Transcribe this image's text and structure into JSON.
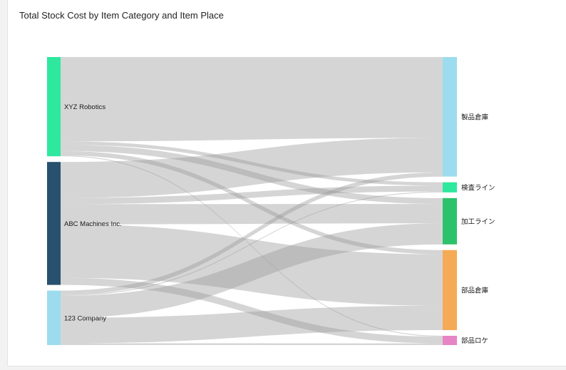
{
  "chart_data": {
    "type": "sankey",
    "title": "Total Stock Cost by Item Category and Item Place",
    "sources": [
      {
        "id": "xyz",
        "name": "XYZ Robotics",
        "color": "#2de89e"
      },
      {
        "id": "abc",
        "name": "ABC Machines Inc.",
        "color": "#27516e"
      },
      {
        "id": "c123",
        "name": "123 Company",
        "color": "#9ddcee"
      }
    ],
    "targets": [
      {
        "id": "seihin",
        "name": "製品倉庫",
        "color": "#9ddcee"
      },
      {
        "id": "kensa",
        "name": "検査ライン",
        "color": "#2de89e"
      },
      {
        "id": "kako",
        "name": "加工ライン",
        "color": "#2cc26b"
      },
      {
        "id": "buhin",
        "name": "部品倉庫",
        "color": "#f5aa55"
      },
      {
        "id": "buhinroke",
        "name": "部品ロケ",
        "color": "#e784c5"
      }
    ],
    "links": [
      {
        "source": "xyz",
        "target": "seihin",
        "value": 96
      },
      {
        "source": "xyz",
        "target": "kensa",
        "value": 4
      },
      {
        "source": "xyz",
        "target": "kako",
        "value": 7
      },
      {
        "source": "xyz",
        "target": "buhin",
        "value": 5
      },
      {
        "source": "xyz",
        "target": "buhinroke",
        "value": 1
      },
      {
        "source": "abc",
        "target": "seihin",
        "value": 41
      },
      {
        "source": "abc",
        "target": "kensa",
        "value": 7
      },
      {
        "source": "abc",
        "target": "kako",
        "value": 23
      },
      {
        "source": "abc",
        "target": "buhin",
        "value": 61
      },
      {
        "source": "abc",
        "target": "buhinroke",
        "value": 8
      },
      {
        "source": "c123",
        "target": "seihin",
        "value": 5
      },
      {
        "source": "c123",
        "target": "kensa",
        "value": 1
      },
      {
        "source": "c123",
        "target": "kako",
        "value": 25
      },
      {
        "source": "c123",
        "target": "buhin",
        "value": 29
      },
      {
        "source": "c123",
        "target": "buhinroke",
        "value": 2
      }
    ]
  }
}
